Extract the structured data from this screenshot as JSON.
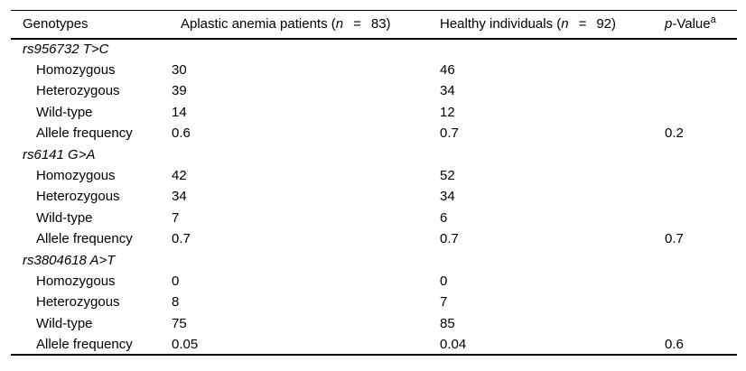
{
  "figure": {
    "background_color": "#ffffff",
    "text_color": "#000000",
    "rule_color": "#000000"
  },
  "table": {
    "header": {
      "genotypes": "Genotypes",
      "aplastic": {
        "label": "Aplastic anemia patients (",
        "n": "n",
        "eq": "=",
        "count": "83)"
      },
      "healthy": {
        "label": "Healthy individuals (",
        "n": "n",
        "eq": "=",
        "count": "92)"
      },
      "pvalue": {
        "p": "p",
        "rest": "-Value",
        "sup": "a"
      }
    },
    "groups": [
      {
        "name": "rs956732 T>C",
        "rows": [
          {
            "label": "Homozygous",
            "aplastic": "30",
            "healthy": "46",
            "p": ""
          },
          {
            "label": "Heterozygous",
            "aplastic": "39",
            "healthy": "34",
            "p": ""
          },
          {
            "label": "Wild-type",
            "aplastic": "14",
            "healthy": "12",
            "p": ""
          },
          {
            "label": "Allele frequency",
            "aplastic": "0.6",
            "healthy": "0.7",
            "p": "0.2"
          }
        ]
      },
      {
        "name": "rs6141 G>A",
        "rows": [
          {
            "label": "Homozygous",
            "aplastic": "42",
            "healthy": "52",
            "p": ""
          },
          {
            "label": "Heterozygous",
            "aplastic": "34",
            "healthy": "34",
            "p": ""
          },
          {
            "label": "Wild-type",
            "aplastic": "7",
            "healthy": "6",
            "p": ""
          },
          {
            "label": "Allele frequency",
            "aplastic": "0.7",
            "healthy": "0.7",
            "p": "0.7"
          }
        ]
      },
      {
        "name": "rs3804618 A>T",
        "rows": [
          {
            "label": "Homozygous",
            "aplastic": "0",
            "healthy": "0",
            "p": ""
          },
          {
            "label": "Heterozygous",
            "aplastic": "8",
            "healthy": "7",
            "p": ""
          },
          {
            "label": "Wild-type",
            "aplastic": "75",
            "healthy": "85",
            "p": ""
          },
          {
            "label": "Allele frequency",
            "aplastic": "0.05",
            "healthy": "0.04",
            "p": "0.6"
          }
        ]
      }
    ]
  }
}
